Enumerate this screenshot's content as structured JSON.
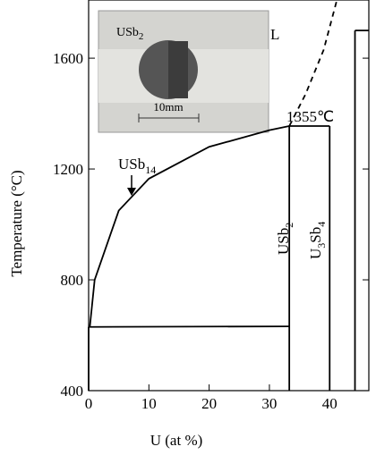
{
  "chart_data": {
    "type": "line",
    "xlabel": "U (at %)",
    "ylabel": "Temperature (°C)",
    "xlim": [
      0,
      46.5
    ],
    "ylim": [
      400,
      1810
    ],
    "xticks": [
      0,
      10,
      20,
      30,
      40
    ],
    "yticks": [
      400,
      800,
      1200,
      1600
    ],
    "color": "#000000",
    "series": [
      {
        "x": [
          0.2,
          1,
          5,
          10,
          20,
          30,
          33.3
        ],
        "values": [
          630,
          800,
          1050,
          1165,
          1280,
          1340,
          1355
        ],
        "style": "solid"
      },
      {
        "x": [
          33.3,
          36,
          39,
          41.2
        ],
        "values": [
          1355,
          1470,
          1630,
          1810
        ],
        "style": "dashed"
      },
      {
        "x": [
          0,
          33.3
        ],
        "values": [
          630,
          632
        ],
        "style": "solid"
      },
      {
        "x": [
          0,
          0
        ],
        "values": [
          400,
          630
        ],
        "style": "solid"
      },
      {
        "x": [
          33.3,
          33.3
        ],
        "values": [
          400,
          1355
        ],
        "style": "solid"
      },
      {
        "x": [
          33.3,
          40
        ],
        "values": [
          1355,
          1355
        ],
        "style": "solid"
      },
      {
        "x": [
          40,
          40
        ],
        "values": [
          400,
          1355
        ],
        "style": "solid"
      },
      {
        "x": [
          44.2,
          44.2
        ],
        "values": [
          400,
          1700
        ],
        "style": "solid"
      },
      {
        "x": [
          44.2,
          46.5
        ],
        "values": [
          1700,
          1700
        ],
        "style": "solid"
      }
    ],
    "annotations": [
      {
        "text": "USb",
        "sub": "14"
      },
      {
        "text": "L"
      },
      {
        "text": "1355℃"
      },
      {
        "text": "USb",
        "sub": "2"
      },
      {
        "text": "U",
        "sub": "3",
        "text2": "Sb",
        "sub2": "4"
      }
    ],
    "inset": {
      "text": "USb",
      "sub": "2",
      "scale": "10mm"
    }
  }
}
